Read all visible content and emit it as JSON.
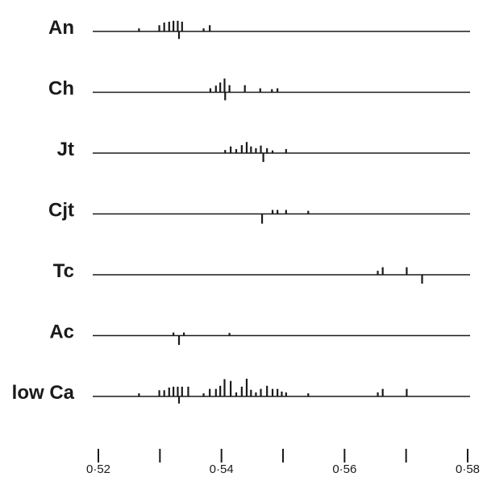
{
  "chart_data": {
    "type": "line",
    "title": "",
    "xlabel": "",
    "ylabel": "",
    "xlim": [
      0.52,
      0.58
    ],
    "x_ticks": [
      0.52,
      0.53,
      0.54,
      0.55,
      0.56,
      0.57,
      0.58
    ],
    "x_tick_labels": [
      "0·52",
      "",
      "0·54",
      "",
      "0·56",
      "",
      "0·58"
    ],
    "grid": false,
    "legend": "none",
    "rows": [
      {
        "label": "An",
        "up": [
          {
            "x": 0.5266,
            "h": 0.35
          },
          {
            "x": 0.5299,
            "h": 0.7
          },
          {
            "x": 0.5307,
            "h": 1.0
          },
          {
            "x": 0.5315,
            "h": 1.1
          },
          {
            "x": 0.5322,
            "h": 1.2
          },
          {
            "x": 0.5329,
            "h": 1.2
          },
          {
            "x": 0.5336,
            "h": 1.1
          },
          {
            "x": 0.5371,
            "h": 0.35
          },
          {
            "x": 0.5381,
            "h": 0.7
          }
        ],
        "down": [
          {
            "x": 0.5331,
            "h": 0.85
          }
        ]
      },
      {
        "label": "Ch",
        "up": [
          {
            "x": 0.5382,
            "h": 0.45
          },
          {
            "x": 0.5391,
            "h": 0.75
          },
          {
            "x": 0.5398,
            "h": 1.1
          },
          {
            "x": 0.5405,
            "h": 1.55
          },
          {
            "x": 0.5413,
            "h": 0.8
          },
          {
            "x": 0.5438,
            "h": 0.8
          },
          {
            "x": 0.5463,
            "h": 0.45
          },
          {
            "x": 0.5482,
            "h": 0.35
          },
          {
            "x": 0.5491,
            "h": 0.45
          }
        ],
        "down": [
          {
            "x": 0.5406,
            "h": 0.9
          }
        ]
      },
      {
        "label": "Jt",
        "up": [
          {
            "x": 0.5406,
            "h": 0.35
          },
          {
            "x": 0.5415,
            "h": 0.75
          },
          {
            "x": 0.5424,
            "h": 0.45
          },
          {
            "x": 0.5433,
            "h": 0.9
          },
          {
            "x": 0.5441,
            "h": 1.25
          },
          {
            "x": 0.5448,
            "h": 0.75
          },
          {
            "x": 0.5456,
            "h": 0.55
          },
          {
            "x": 0.5464,
            "h": 0.85
          },
          {
            "x": 0.5474,
            "h": 0.55
          },
          {
            "x": 0.5483,
            "h": 0.3
          },
          {
            "x": 0.5505,
            "h": 0.45
          }
        ],
        "down": [
          {
            "x": 0.5468,
            "h": 1.0
          }
        ]
      },
      {
        "label": "Cjt",
        "up": [
          {
            "x": 0.5483,
            "h": 0.45
          },
          {
            "x": 0.5491,
            "h": 0.45
          },
          {
            "x": 0.5505,
            "h": 0.45
          },
          {
            "x": 0.5541,
            "h": 0.35
          }
        ],
        "down": [
          {
            "x": 0.5466,
            "h": 1.1
          }
        ]
      },
      {
        "label": "Tc",
        "up": [
          {
            "x": 0.5654,
            "h": 0.45
          },
          {
            "x": 0.5662,
            "h": 0.85
          },
          {
            "x": 0.5701,
            "h": 0.85
          }
        ],
        "down": [
          {
            "x": 0.5726,
            "h": 1.0
          }
        ]
      },
      {
        "label": "Ac",
        "up": [
          {
            "x": 0.5322,
            "h": 0.35
          },
          {
            "x": 0.5339,
            "h": 0.35
          },
          {
            "x": 0.5413,
            "h": 0.3
          }
        ],
        "down": [
          {
            "x": 0.5331,
            "h": 1.05
          }
        ]
      },
      {
        "label": "low Ca",
        "up": [
          {
            "x": 0.5266,
            "h": 0.35
          },
          {
            "x": 0.5299,
            "h": 0.7
          },
          {
            "x": 0.5307,
            "h": 0.7
          },
          {
            "x": 0.5315,
            "h": 1.0
          },
          {
            "x": 0.5322,
            "h": 1.1
          },
          {
            "x": 0.5329,
            "h": 1.1
          },
          {
            "x": 0.5336,
            "h": 1.1
          },
          {
            "x": 0.5346,
            "h": 1.1
          },
          {
            "x": 0.5371,
            "h": 0.35
          },
          {
            "x": 0.5381,
            "h": 0.85
          },
          {
            "x": 0.5391,
            "h": 0.85
          },
          {
            "x": 0.5398,
            "h": 1.2
          },
          {
            "x": 0.5405,
            "h": 1.95
          },
          {
            "x": 0.5415,
            "h": 1.75
          },
          {
            "x": 0.5424,
            "h": 0.45
          },
          {
            "x": 0.5433,
            "h": 1.1
          },
          {
            "x": 0.5441,
            "h": 2.0
          },
          {
            "x": 0.5448,
            "h": 0.75
          },
          {
            "x": 0.5456,
            "h": 0.45
          },
          {
            "x": 0.5464,
            "h": 0.85
          },
          {
            "x": 0.5474,
            "h": 1.2
          },
          {
            "x": 0.5483,
            "h": 0.85
          },
          {
            "x": 0.5491,
            "h": 0.85
          },
          {
            "x": 0.5498,
            "h": 0.55
          },
          {
            "x": 0.5505,
            "h": 0.45
          },
          {
            "x": 0.5541,
            "h": 0.35
          },
          {
            "x": 0.5654,
            "h": 0.45
          },
          {
            "x": 0.5662,
            "h": 0.85
          },
          {
            "x": 0.5701,
            "h": 0.85
          }
        ],
        "down": [
          {
            "x": 0.5331,
            "h": 0.8
          }
        ]
      }
    ]
  }
}
